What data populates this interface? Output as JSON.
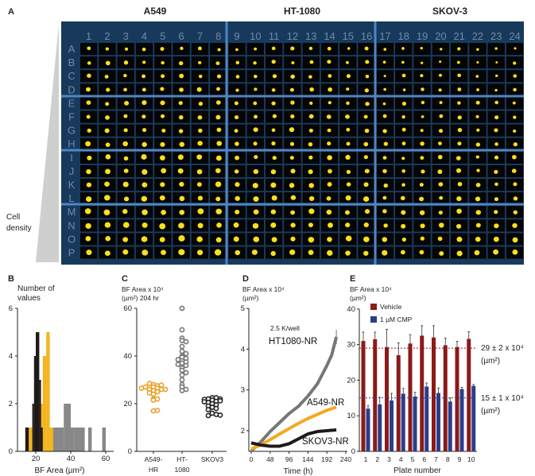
{
  "panel_a": {
    "panel_label": "A",
    "group_titles": [
      "A549",
      "HT-1080",
      "SKOV-3"
    ],
    "column_labels": [
      "1",
      "2",
      "3",
      "4",
      "5",
      "6",
      "7",
      "8",
      "9",
      "10",
      "11",
      "12",
      "13",
      "14",
      "15",
      "16",
      "17",
      "18",
      "19",
      "20",
      "21",
      "22",
      "23",
      "24"
    ],
    "row_labels": [
      "A",
      "B",
      "C",
      "D",
      "E",
      "F",
      "G",
      "H",
      "I",
      "J",
      "K",
      "L",
      "M",
      "N",
      "O",
      "P"
    ],
    "side_label_line1": "Cell",
    "side_label_line2": "density",
    "colors": {
      "plate": "#173a5c",
      "well": "#050505",
      "divider": "#4f86c6",
      "spot": "#f7e11c"
    }
  },
  "chart_data": [
    {
      "panel_label": "B",
      "type": "bar",
      "subtype": "histogram",
      "ylabel_line1": "Number of",
      "ylabel_line2": "values",
      "xlabel": "BF Area (µm²)",
      "xlim": [
        10,
        65
      ],
      "ylim": [
        0,
        6
      ],
      "xticks": [
        "20",
        "40",
        "60"
      ],
      "yticks": [
        "0",
        "2",
        "4",
        "6"
      ],
      "series": [
        {
          "color": "#888888",
          "bins": [
            [
              30,
              36,
              1
            ],
            [
              36,
              40,
              2
            ],
            [
              40,
              42,
              1
            ],
            [
              42,
              48,
              1
            ],
            [
              50,
              52,
              1
            ],
            [
              58,
              60,
              1
            ]
          ]
        },
        {
          "color": "#f4b41e",
          "bins": [
            [
              16,
              18,
              1
            ],
            [
              22,
              24,
              2
            ],
            [
              24,
              26,
              4
            ],
            [
              26,
              28,
              5
            ],
            [
              28,
              30,
              1
            ]
          ]
        },
        {
          "color": "#1e1a18",
          "bins": [
            [
              14,
              16,
              1
            ],
            [
              18,
              19,
              2
            ],
            [
              19,
              20,
              4
            ],
            [
              20,
              22,
              5
            ],
            [
              22,
              23,
              3
            ],
            [
              23,
              24,
              1
            ]
          ]
        }
      ]
    },
    {
      "panel_label": "C",
      "type": "scatter",
      "subtype": "dot-plot",
      "ylabel_line1": "BF Area x 10⁴",
      "ylabel_line2": "(µm²) 204 hr",
      "ylim": [
        0,
        60
      ],
      "yticks": [
        "0",
        "20",
        "40",
        "60"
      ],
      "categories": [
        [
          "A549-",
          "HR"
        ],
        [
          "HT-",
          "1080"
        ],
        [
          "SKOV3",
          ""
        ]
      ],
      "series": [
        {
          "color": "#e8a02a",
          "values": [
            28,
            27.5,
            28.5,
            27,
            26.5,
            26,
            26,
            25.5,
            27,
            26,
            25,
            24,
            24.5,
            22,
            21.5,
            22,
            17,
            17.2,
            26.5,
            27.8
          ]
        },
        {
          "color": "#777777",
          "values": [
            60,
            51,
            47.5,
            46.5,
            46,
            44,
            42,
            40,
            39.5,
            39,
            38.5,
            38,
            37.5,
            37,
            36,
            35,
            34,
            33,
            32,
            30,
            28,
            27,
            26,
            25.5,
            36.5,
            41
          ]
        },
        {
          "color": "#222222",
          "values": [
            22.5,
            22.5,
            22,
            22,
            21.8,
            21.5,
            21,
            20.5,
            20,
            19.5,
            19,
            18.5,
            18,
            17.5,
            16,
            15.5,
            15,
            15.2,
            21.2,
            20.8
          ]
        }
      ]
    },
    {
      "panel_label": "D",
      "type": "line",
      "ylabel_line1": "BF Area x 10⁴",
      "ylabel_line2": "(µm²)",
      "xlabel": "Time (h)",
      "xlim": [
        0,
        240
      ],
      "ylim": [
        1.5,
        5
      ],
      "xticks": [
        "0",
        "48",
        "96",
        "144",
        "192",
        "240"
      ],
      "yticks": [
        "2",
        "3",
        "4",
        "5"
      ],
      "annotation": "2.5 K/well",
      "series": [
        {
          "name": "HT1080-NR",
          "color": "#777777",
          "x": [
            0,
            24,
            48,
            72,
            96,
            120,
            144,
            168,
            192,
            204,
            216
          ],
          "y": [
            1.5,
            1.72,
            1.98,
            2.2,
            2.42,
            2.6,
            2.85,
            3.15,
            3.6,
            3.85,
            4.3
          ]
        },
        {
          "name": "A549-NR",
          "color": "#f4a822",
          "x": [
            0,
            24,
            48,
            72,
            96,
            120,
            144,
            168,
            192,
            216
          ],
          "y": [
            1.55,
            1.65,
            1.78,
            1.92,
            2.05,
            2.18,
            2.3,
            2.4,
            2.5,
            2.58
          ]
        },
        {
          "name": "SKOV3-NR",
          "color": "#1e1a18",
          "x": [
            0,
            24,
            48,
            72,
            96,
            120,
            144,
            168,
            192,
            216
          ],
          "y": [
            1.7,
            1.65,
            1.62,
            1.62,
            1.68,
            1.8,
            1.92,
            1.98,
            2.0,
            2.02
          ]
        }
      ]
    },
    {
      "panel_label": "E",
      "type": "bar",
      "ylabel_line1": "BF Area x 10⁴",
      "ylabel_line2": "(µm²)",
      "xlabel": "Plate number",
      "ylim": [
        0,
        40
      ],
      "yticks": [
        "0",
        "10",
        "20",
        "30",
        "40"
      ],
      "categories": [
        "1",
        "2",
        "3",
        "4",
        "5",
        "6",
        "7",
        "8",
        "9",
        "10"
      ],
      "legend_placement": "top-left",
      "series": [
        {
          "name": "Vehicle",
          "color": "#8b1a1a",
          "values": [
            31,
            31.5,
            29.3,
            27,
            30.3,
            32.5,
            32,
            29.8,
            29.3,
            31.6
          ],
          "errors": [
            2.5,
            2,
            5,
            3.5,
            2.5,
            2.8,
            3.3,
            2,
            1.6,
            2
          ]
        },
        {
          "name": "1 µM CMP",
          "color": "#2a3e8c",
          "values": [
            12,
            13.2,
            14.3,
            16.2,
            15.4,
            18.2,
            16.4,
            14,
            17.5,
            18.4
          ],
          "errors": [
            0.8,
            2,
            2,
            1.5,
            1.2,
            1,
            1.4,
            1,
            0.5,
            0.4
          ]
        }
      ],
      "reference_lines": [
        {
          "value": 29,
          "color": "#8b1a1a",
          "label_line1": "29 ± 2 x 10⁴",
          "label_line2": "(µm²)"
        },
        {
          "value": 15,
          "color": "#2a3e8c",
          "label_line1": "15 ± 1 x 10⁴",
          "label_line2": "(µm²)"
        }
      ]
    }
  ]
}
